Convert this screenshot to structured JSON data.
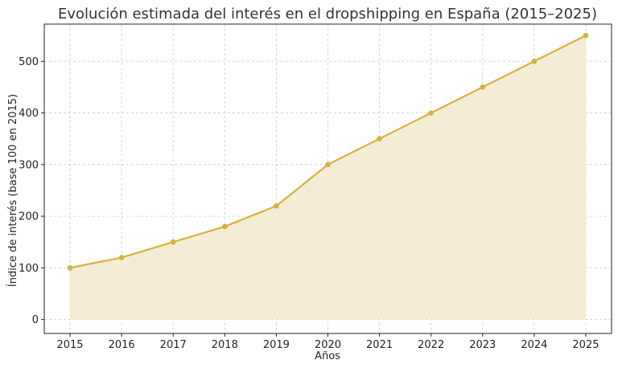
{
  "chart_data": {
    "type": "area",
    "title": "Evolución estimada del interés en el dropshipping en España (2015–2025)",
    "xlabel": "Años",
    "ylabel": "Índice de interés (base 100 en 2015)",
    "x": [
      2015,
      2016,
      2017,
      2018,
      2019,
      2020,
      2021,
      2022,
      2023,
      2024,
      2025
    ],
    "series": [
      {
        "values": [
          100,
          120,
          150,
          180,
          220,
          300,
          350,
          400,
          450,
          500,
          550
        ]
      }
    ],
    "xticks": [
      "2015",
      "2016",
      "2017",
      "2018",
      "2019",
      "2020",
      "2021",
      "2022",
      "2023",
      "2024",
      "2025"
    ],
    "yticks": [
      "0",
      "100",
      "200",
      "300",
      "400",
      "500"
    ],
    "xlim": [
      2014.5,
      2025.5
    ],
    "ylim": [
      -27,
      572
    ],
    "grid": true,
    "colors": {
      "line": "#d4b23f",
      "fill": "#f5ecd5"
    }
  }
}
